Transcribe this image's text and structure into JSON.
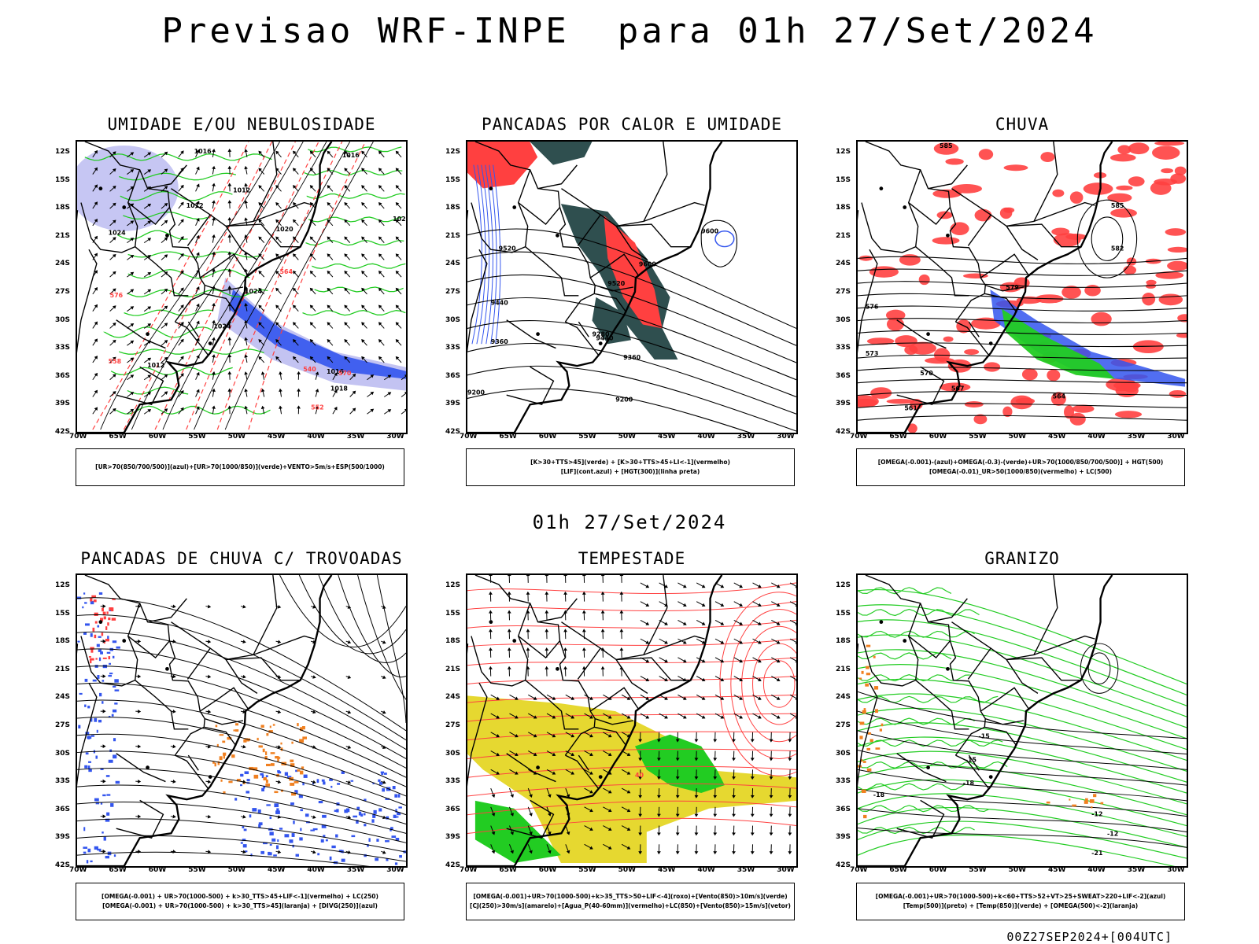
{
  "title": "Previsao WRF-INPE  para 01h 27/Set/2024",
  "mid_title": "01h 27/Set/2024",
  "footer": "00Z27SEP2024+[004UTC]",
  "lat_labels": [
    "12S",
    "15S",
    "18S",
    "21S",
    "24S",
    "27S",
    "30S",
    "33S",
    "36S",
    "39S",
    "42S"
  ],
  "lon_labels": [
    "70W",
    "65W",
    "60W",
    "55W",
    "50W",
    "45W",
    "40W",
    "35W",
    "30W"
  ],
  "colors": {
    "blue": "#3355ee",
    "green": "#22cc22",
    "red": "#ff4040",
    "darkteal": "#2f4f4f",
    "yellow": "#e6d830",
    "orange": "#f08020",
    "lavender": "#b8b8f0"
  },
  "panels": [
    {
      "key": "umidade",
      "title": "UMIDADE E/OU NEBULOSIDADE",
      "legend": [
        "[UR>70(850/700/500)](azul)+[UR>70(1000/850)](verde)+VENTO>5m/s+ESP(500/1000)"
      ],
      "contour_labels": [
        "1016",
        "1016",
        "1012",
        "1012",
        "1020",
        "1024",
        "1020",
        "1024",
        "1024",
        "1012",
        "1018",
        "1016",
        "570",
        "576",
        "564",
        "540",
        "558",
        "552"
      ]
    },
    {
      "key": "pancadas_calor",
      "title": "PANCADAS POR CALOR E UMIDADE",
      "legend": [
        "[K>30+TTS>45](verde) + [K>30+TTS>45+LI<-1](vermelho)",
        "[LIF](cont.azul) + [HGT(300)](linha preta)"
      ],
      "contour_labels": [
        "9600",
        "9520",
        "9600",
        "9440",
        "9520",
        "9360",
        "9440",
        "9280",
        "9360",
        "9200",
        "9200"
      ]
    },
    {
      "key": "chuva",
      "title": "CHUVA",
      "legend": [
        "[OMEGA(-0.001)-(azul)+OMEGA(-0.3)-(verde)+UR>70(1000/850/700/500)] + HGT(500)",
        "[OMEGA(-0.01)_UR>50(1000/850)(vermelho) + LC(500)"
      ],
      "contour_labels": [
        "585",
        "585",
        "582",
        "579",
        "576",
        "573",
        "570",
        "567",
        "564",
        "561"
      ]
    },
    {
      "key": "trovoadas",
      "title": "PANCADAS DE CHUVA C/ TROVOADAS",
      "legend": [
        "[OMEGA(-0.001) + UR>70(1000-500) + k>30_TTS>45+LIF<-1](vermelho) + LC(250)",
        "[OMEGA(-0.001) + UR>70(1000-500) + k>30_TTS>45](laranja) + [DIVG(250)](azul)"
      ],
      "contour_labels": []
    },
    {
      "key": "tempestade",
      "title": "TEMPESTADE",
      "legend": [
        "[OMEGA(-0.001)+UR>70(1000-500)+k>35_TTS>50+LIF<-4](roxo)+[Vento(850)>10m/s](verde)",
        "[CJ(250)>30m/s](amarelo)+[Agua_P(40-60mm)](vermelho)+LC(850)+[Vento(850)>15m/s](vetor)"
      ],
      "contour_labels": [
        "40"
      ]
    },
    {
      "key": "granizo",
      "title": "GRANIZO",
      "legend": [
        "[OMEGA(-0.001)+UR>70(1000-500)+k<60+TTS>52+VT>25+SWEAT>220+LIF<-2](azul)",
        "[Temp(500)](preto) + [Temp(850)](verde) + [OMEGA(500)<-2](laranja)"
      ],
      "contour_labels": [
        "-15",
        "-18",
        "-18",
        "-15",
        "-12",
        "-12",
        "-21"
      ]
    }
  ]
}
